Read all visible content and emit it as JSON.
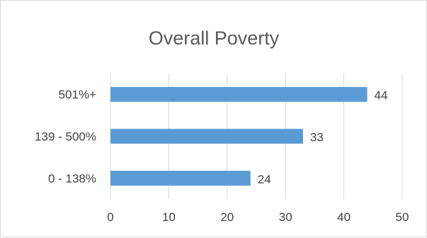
{
  "chart_data": {
    "type": "bar",
    "orientation": "horizontal",
    "title": "Overall Poverty",
    "categories": [
      "501%+",
      "139 - 500%",
      "0 - 138%"
    ],
    "values": [
      44,
      33,
      24
    ],
    "xlim": [
      0,
      50
    ],
    "x_ticks": [
      0,
      10,
      20,
      30,
      40,
      50
    ],
    "grid": "vertical",
    "legend": "none",
    "bar_color": "#5b9bd5",
    "xlabel": "",
    "ylabel": ""
  }
}
